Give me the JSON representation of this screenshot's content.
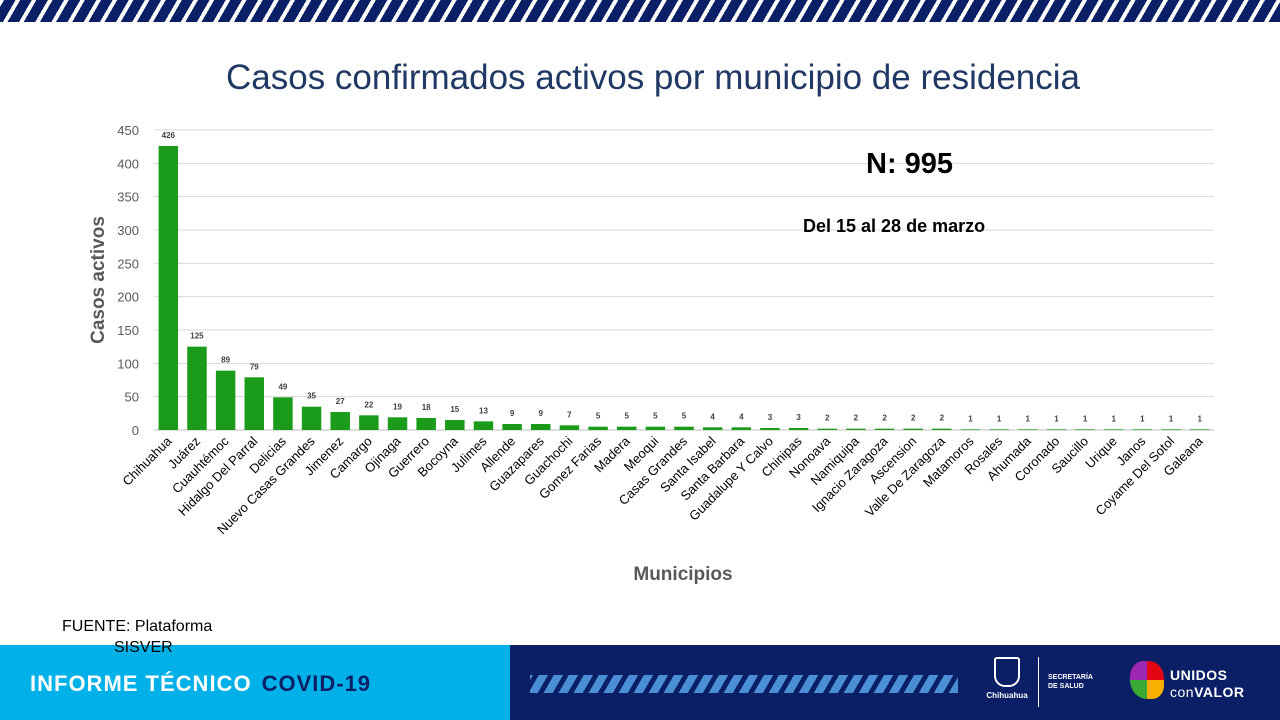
{
  "slide": {
    "title": "Casos confirmados activos por municipio de residencia",
    "n_total": "N: 995",
    "date_range": "Del 15 al 28 de marzo",
    "source_line1": "FUENTE: Plataforma",
    "source_line2": "SISVER"
  },
  "footer": {
    "label_white": "INFORME TÉCNICO",
    "label_dark": "COVID-19",
    "gov_logo_text": "Chihuahua",
    "health_logo_line1": "SECRETARÍA",
    "health_logo_line2": "DE SALUD",
    "unidos_line1": "UNIDOS",
    "unidos_line2_a": "con",
    "unidos_line2_b": "VALOR"
  },
  "chart_data": {
    "type": "bar",
    "title": "Casos confirmados activos por municipio de residencia",
    "xlabel": "Municipios",
    "ylabel": "Casos activos",
    "ylim": [
      0,
      450
    ],
    "yticks": [
      0,
      50,
      100,
      150,
      200,
      250,
      300,
      350,
      400,
      450
    ],
    "grid": true,
    "bar_color": "#1a9b1a",
    "categories": [
      "Chihuahua",
      "Juárez",
      "Cuauhtémoc",
      "Hidalgo Del Parral",
      "Delicias",
      "Nuevo Casas Grandes",
      "Jimenez",
      "Camargo",
      "Ojinaga",
      "Guerrero",
      "Bocoyna",
      "Julimes",
      "Allende",
      "Guazapares",
      "Guachochi",
      "Gomez Farias",
      "Madera",
      "Meoqui",
      "Casas Grandes",
      "Santa Isabel",
      "Santa Barbara",
      "Guadalupe Y Calvo",
      "Chinipas",
      "Nonoava",
      "Namiquipa",
      "Ignacio Zaragoza",
      "Ascension",
      "Valle De Zaragoza",
      "Matamoros",
      "Rosales",
      "Ahumada",
      "Coronado",
      "Saucillo",
      "Urique",
      "Janos",
      "Coyame Del Sotol",
      "Galeana"
    ],
    "values": [
      426,
      125,
      89,
      79,
      49,
      35,
      27,
      22,
      19,
      18,
      15,
      13,
      9,
      9,
      7,
      5,
      5,
      5,
      5,
      4,
      4,
      3,
      3,
      2,
      2,
      2,
      2,
      2,
      1,
      1,
      1,
      1,
      1,
      1,
      1,
      1,
      1
    ]
  },
  "colors": {
    "title": "#1f3864",
    "bar": "#1a9b1a",
    "axis_text": "#595959",
    "footer_light": "#00b0e8",
    "footer_dark": "#0b1f66"
  }
}
